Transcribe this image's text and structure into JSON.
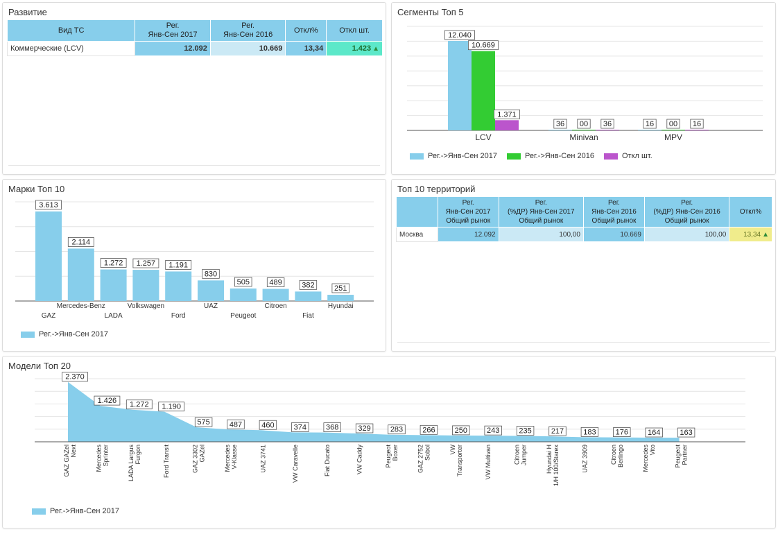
{
  "panels": {
    "razvitie": {
      "title": "Развитие",
      "headers": [
        "Вид ТС",
        "Рег.\nЯнв-Сен 2017",
        "Рег.\nЯнв-Сен 2016",
        "Откл%",
        "Откл шт."
      ],
      "row": {
        "label": "Коммерческие (LCV)",
        "v2017": "12.092",
        "v2016": "10.669",
        "pct": "13,34",
        "diff": "1.423"
      }
    },
    "segments": {
      "title": "Сегменты Топ 5",
      "legend": [
        "Рег.->Янв-Сен 2017",
        "Рег.->Янв-Сен 2016",
        "Откл шт."
      ],
      "colors": [
        "#87ceeb",
        "#33cc33",
        "#bb55cc"
      ]
    },
    "brands": {
      "title": "Марки Топ 10",
      "legend": [
        "Рег.->Янв-Сен 2017"
      ]
    },
    "territories": {
      "title": "Топ 10 территорий",
      "headers": [
        "",
        "Рег.\nЯнв-Сен 2017\nОбщий рынок",
        "Рег.\n(%ДР) Янв-Сен 2017\nОбщий рынок",
        "Рег.\nЯнв-Сен 2016\nОбщий рынок",
        "Рег.\n(%ДР) Янв-Сен 2016\nОбщий рынок",
        "Откл%"
      ],
      "row": {
        "label": "Москва",
        "v2017": "12.092",
        "p2017": "100,00",
        "v2016": "10.669",
        "p2016": "100,00",
        "pct": "13,34"
      }
    },
    "models": {
      "title": "Модели Топ 20",
      "legend": [
        "Рег.->Янв-Сен 2017"
      ]
    }
  },
  "chart_data": [
    {
      "type": "bar",
      "title": "Сегменты Топ 5",
      "categories": [
        "LCV",
        "Minivan",
        "MPV"
      ],
      "series": [
        {
          "name": "Рег.->Янв-Сен 2017",
          "values": [
            12040,
            36,
            16
          ],
          "labels": [
            "12.040",
            "36",
            "16"
          ]
        },
        {
          "name": "Рег.->Янв-Сен 2016",
          "values": [
            10669,
            0,
            0
          ],
          "labels": [
            "10.669",
            "00",
            "00"
          ]
        },
        {
          "name": "Откл шт.",
          "values": [
            1371,
            36,
            16
          ],
          "labels": [
            "1.371",
            "36",
            "16"
          ]
        }
      ],
      "ylim": [
        0,
        14000
      ],
      "grid": true,
      "legend": "bottom"
    },
    {
      "type": "bar",
      "title": "Марки Топ 10",
      "categories": [
        "GAZ",
        "Mercedes-Benz",
        "LADA",
        "Volkswagen",
        "Ford",
        "UAZ",
        "Peugeot",
        "Citroen",
        "Fiat",
        "Hyundai"
      ],
      "series": [
        {
          "name": "Рег.->Янв-Сен 2017",
          "values": [
            3613,
            2114,
            1272,
            1257,
            1191,
            830,
            505,
            489,
            382,
            251
          ],
          "labels": [
            "3.613",
            "2.114",
            "1.272",
            "1.257",
            "1.191",
            "830",
            "505",
            "489",
            "382",
            "251"
          ]
        }
      ],
      "ylim": [
        0,
        4000
      ],
      "grid": true,
      "legend": "bottom-left"
    },
    {
      "type": "area",
      "title": "Модели Топ 20",
      "categories": [
        "GAZ GAZel Next",
        "Mercedes Sprinter",
        "LADA Largus Furgon",
        "Ford Transit",
        "GAZ 3302 GAZel",
        "Mercedes V-Klasse",
        "UAZ 3741",
        "VW Caravelle",
        "Fiat Ducato",
        "VW Caddy",
        "Peugeot Boxer",
        "GAZ 2752 Sobol",
        "VW Transporter",
        "VW Multivan",
        "Citroen Jumper",
        "Hyundai H 1/H 100/Starex",
        "UAZ 3909",
        "Citroen Berlingo",
        "Mercedes Vito",
        "Peugeot Partner"
      ],
      "series": [
        {
          "name": "Рег.->Янв-Сен 2017",
          "values": [
            2370,
            1426,
            1272,
            1190,
            575,
            487,
            460,
            374,
            368,
            329,
            283,
            266,
            250,
            243,
            235,
            217,
            183,
            176,
            164,
            163
          ],
          "labels": [
            "2.370",
            "1.426",
            "1.272",
            "1.190",
            "575",
            "487",
            "460",
            "374",
            "368",
            "329",
            "283",
            "266",
            "250",
            "243",
            "235",
            "217",
            "183",
            "176",
            "164",
            "163"
          ]
        }
      ],
      "ylim": [
        0,
        2500
      ],
      "grid": true,
      "legend": "bottom-left"
    }
  ]
}
